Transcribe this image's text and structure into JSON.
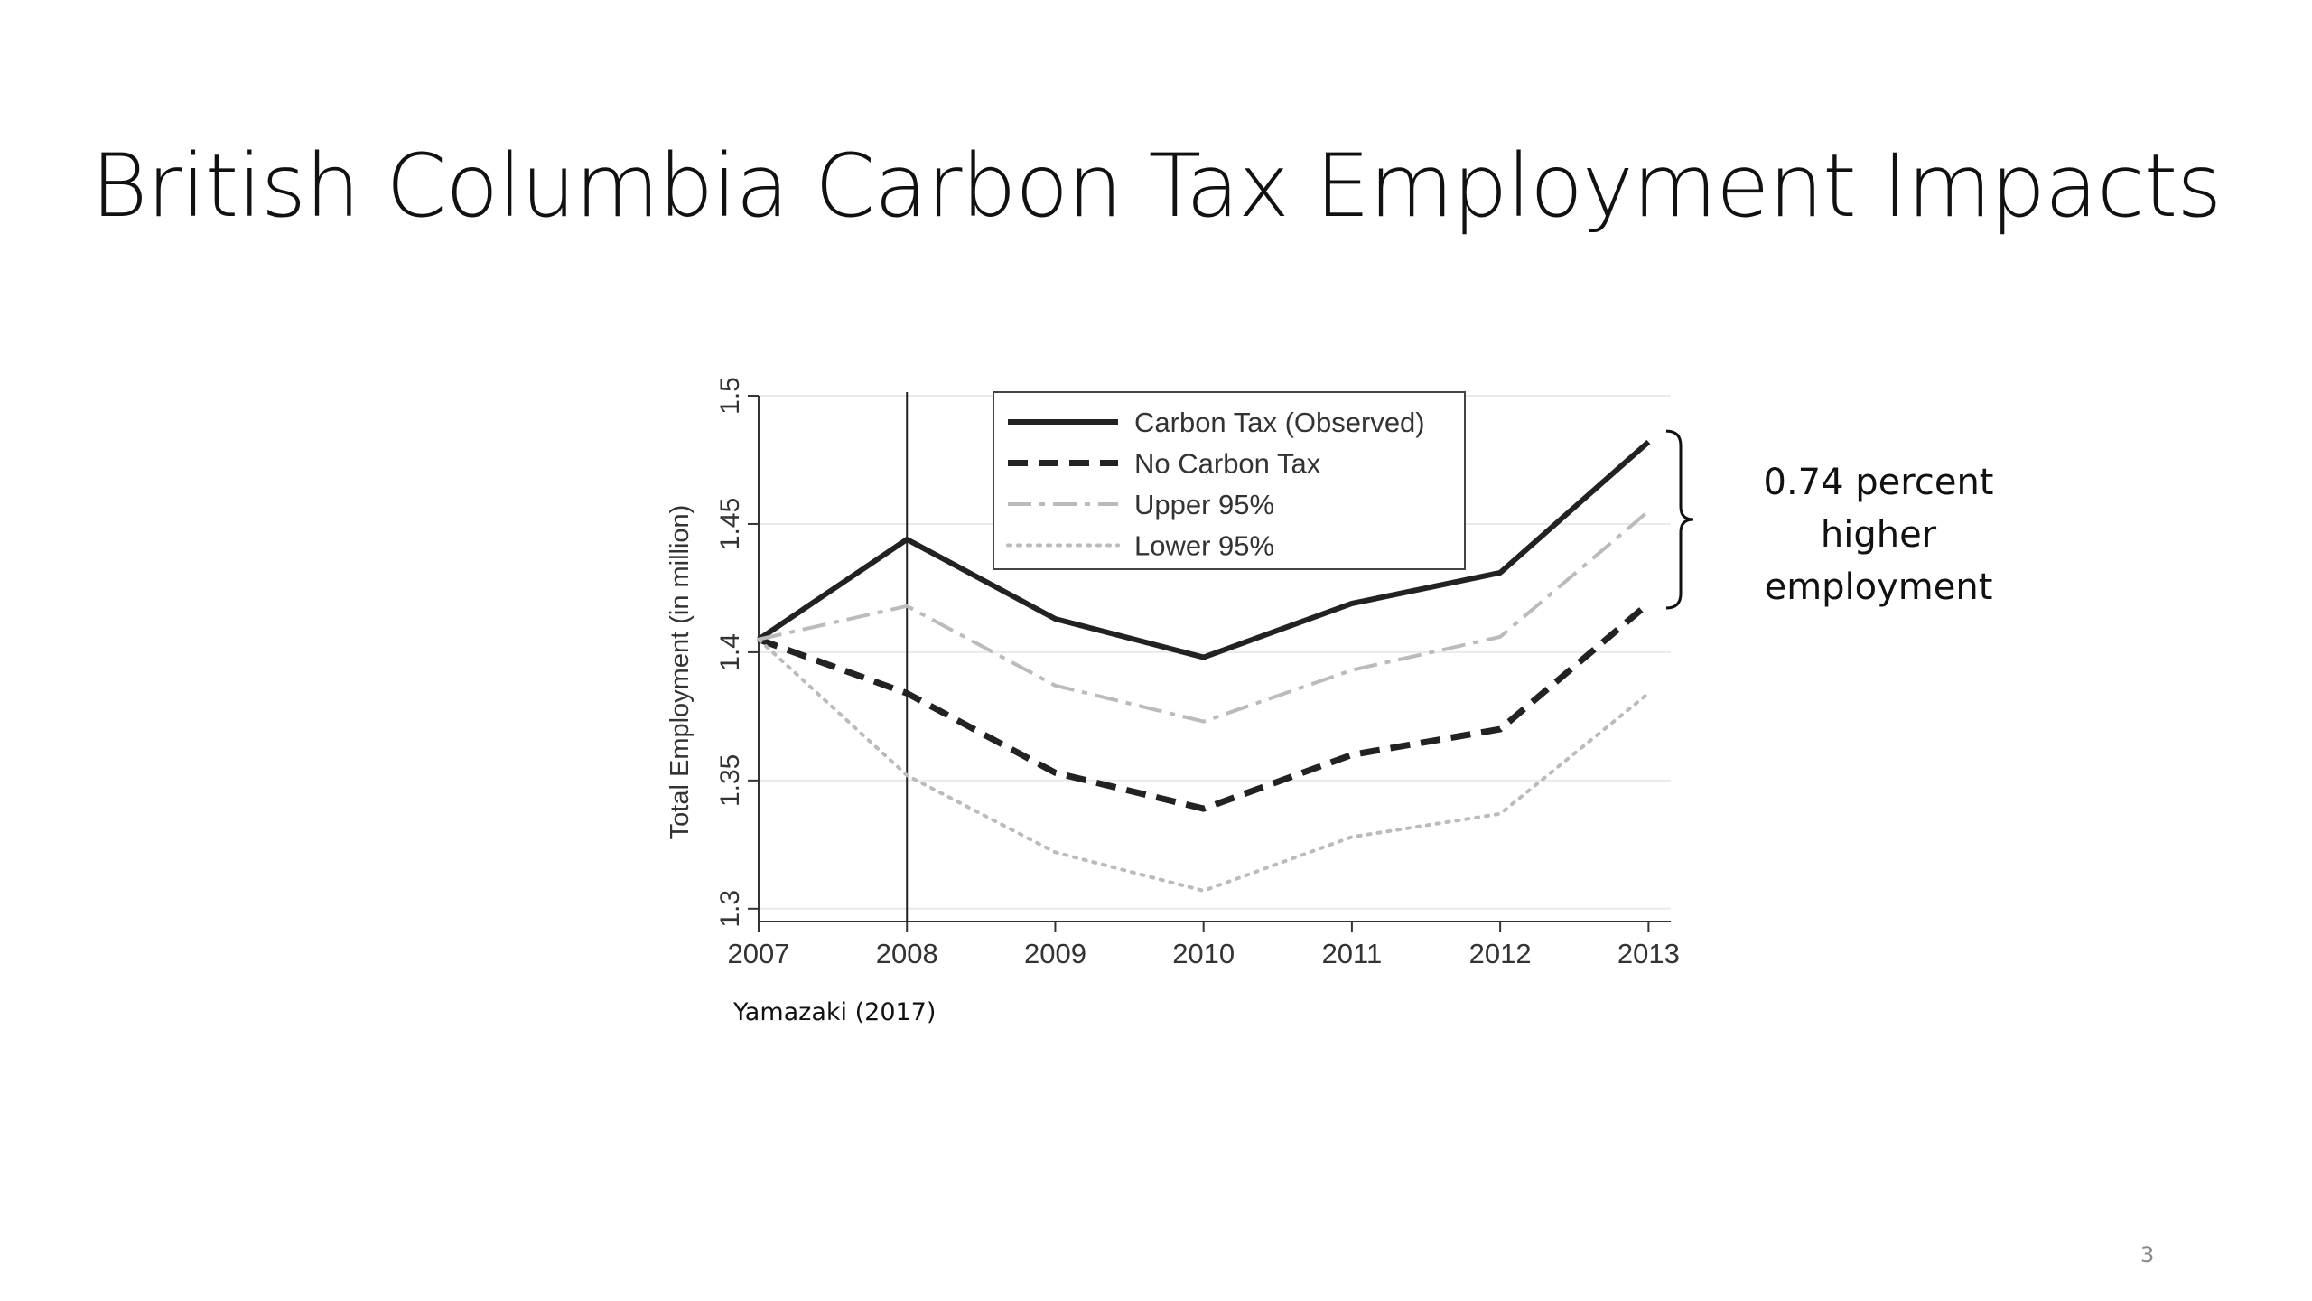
{
  "slide": {
    "title": "British Columbia Carbon Tax Employment Impacts",
    "annotation_lines": [
      "0.74 percent",
      "higher",
      "employment"
    ],
    "source": "Yamazaki (2017)",
    "page_number": "3"
  },
  "chart_data": {
    "type": "line",
    "ylabel": "Total Employment (in million)",
    "xlabel": "",
    "x": [
      2007,
      2008,
      2009,
      2010,
      2011,
      2012,
      2013
    ],
    "x_tick_labels": [
      "2007",
      "2008",
      "2009",
      "2010",
      "2011",
      "2012",
      "2013"
    ],
    "y_tick_labels": [
      "1.3",
      "1.35",
      "1.4",
      "1.45",
      "1.5"
    ],
    "y_ticks": [
      1.3,
      1.35,
      1.4,
      1.45,
      1.5
    ],
    "xlim": [
      2007,
      2013.15
    ],
    "ylim": [
      1.295,
      1.5
    ],
    "reference_line_x": 2008,
    "legend_position": "top",
    "grid": true,
    "series": [
      {
        "name": "Carbon Tax (Observed)",
        "style": "solid",
        "color": "#222222",
        "values": [
          1.405,
          1.444,
          1.413,
          1.398,
          1.419,
          1.431,
          1.482
        ]
      },
      {
        "name": "No Carbon Tax",
        "style": "dash",
        "color": "#222222",
        "values": [
          1.405,
          1.384,
          1.353,
          1.339,
          1.36,
          1.37,
          1.419
        ]
      },
      {
        "name": "Upper 95%",
        "style": "dashdot",
        "color": "#bbbbbb",
        "values": [
          1.405,
          1.418,
          1.387,
          1.373,
          1.393,
          1.406,
          1.455
        ]
      },
      {
        "name": "Lower 95%",
        "style": "dot",
        "color": "#bbbbbb",
        "values": [
          1.405,
          1.352,
          1.322,
          1.307,
          1.328,
          1.337,
          1.384
        ]
      }
    ]
  }
}
